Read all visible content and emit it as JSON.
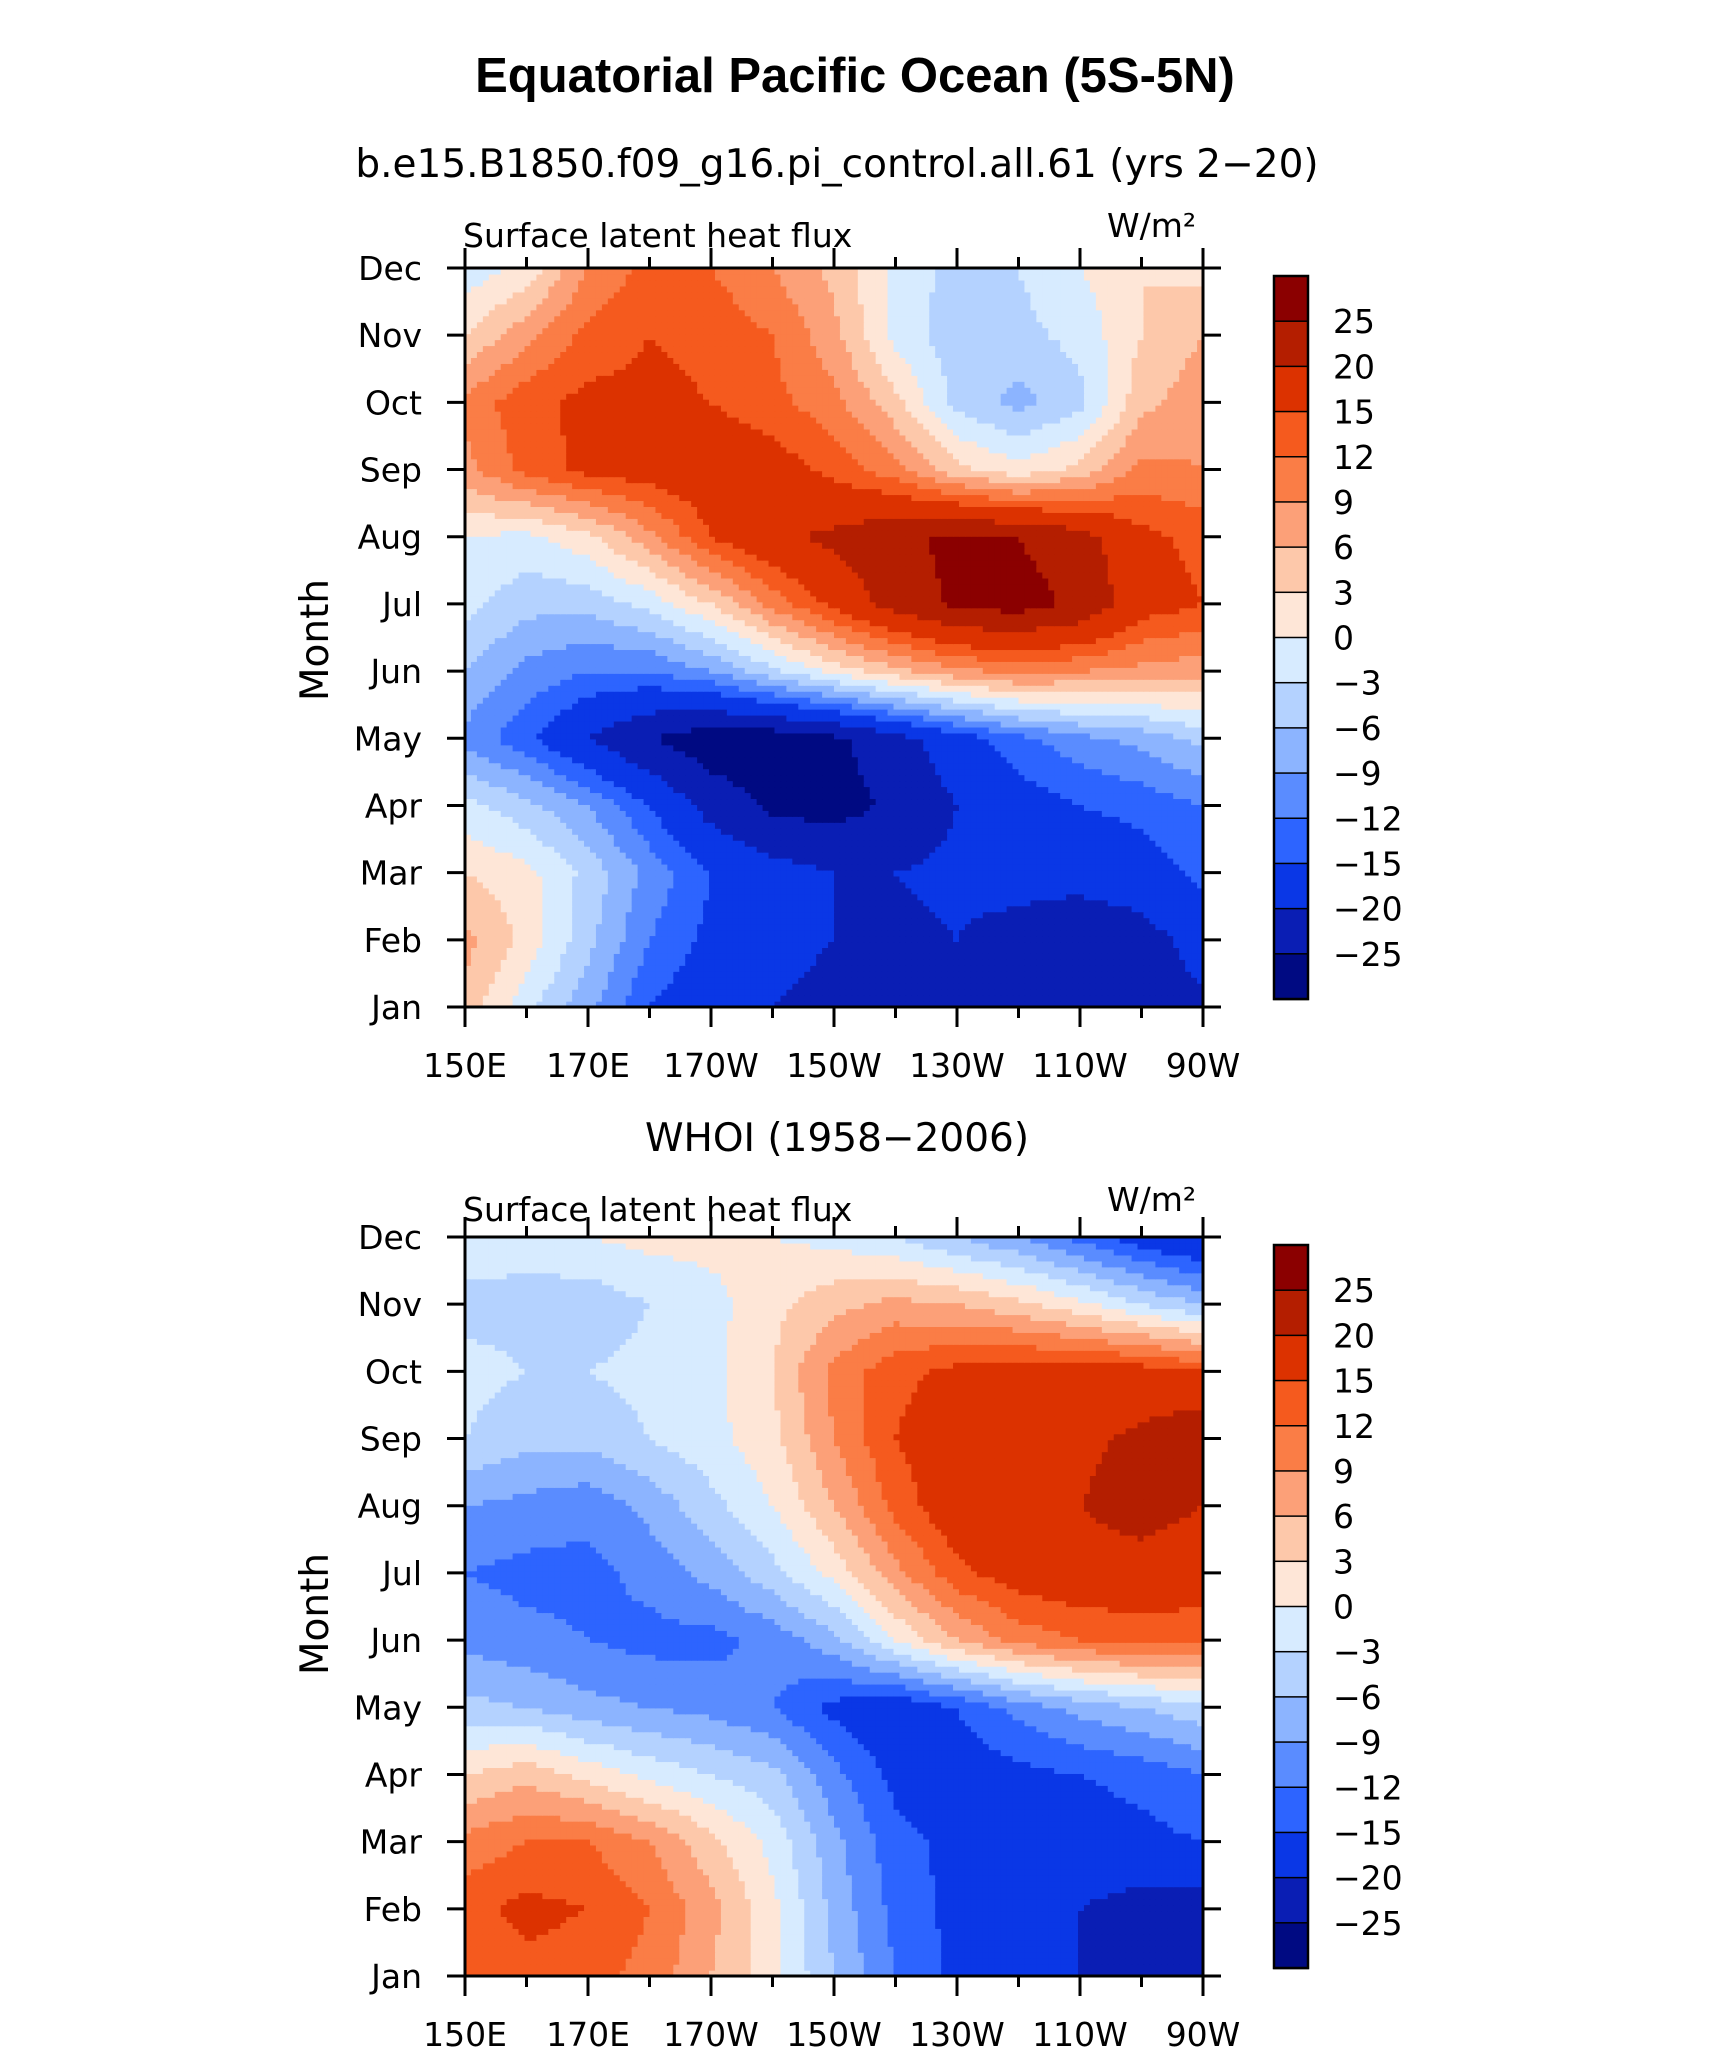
{
  "title": "Equatorial Pacific Ocean (5S-5N)",
  "colorbar": {
    "levels": [
      "25",
      "20",
      "15",
      "12",
      "9",
      "6",
      "3",
      "0",
      "−3",
      "−6",
      "−9",
      "−12",
      "−15",
      "−20",
      "−25"
    ],
    "colors": [
      "#8b0000",
      "#b41e00",
      "#dc3200",
      "#f55a1e",
      "#fa7d46",
      "#fca078",
      "#fdc8aa",
      "#fee6d7",
      "#d7ebff",
      "#b4d2ff",
      "#8cb4ff",
      "#5a8cff",
      "#2d64ff",
      "#0a37e6",
      "#0a1eb4",
      "#000a82"
    ]
  },
  "chart_data": [
    {
      "type": "heatmap",
      "panel_title": "b.e15.B1850.f09_g16.pi_control.all.61 (yrs 2−20)",
      "left_label": "Surface latent heat flux",
      "right_label": "W/m²",
      "ylabel": "Month",
      "xlabel": "",
      "x": [
        "150E",
        "170E",
        "170W",
        "150W",
        "130W",
        "110W",
        "90W"
      ],
      "y": [
        "Jan",
        "Feb",
        "Mar",
        "Apr",
        "May",
        "Jun",
        "Jul",
        "Aug",
        "Sep",
        "Oct",
        "Nov",
        "Dec"
      ],
      "z": [
        [
          5,
          -2,
          -8,
          -15,
          -18,
          -20,
          -21,
          -21,
          -21,
          -22,
          -23,
          -22,
          -21
        ],
        [
          7,
          2,
          -5,
          -12,
          -16,
          -19,
          -20,
          -21,
          -20,
          -22,
          -24,
          -22,
          -18
        ],
        [
          3,
          1,
          -4,
          -10,
          -15,
          -18,
          -20,
          -20,
          -19,
          -18,
          -18,
          -17,
          -14
        ],
        [
          -2,
          -5,
          -9,
          -15,
          -22,
          -26,
          -27,
          -24,
          -20,
          -17,
          -15,
          -14,
          -12
        ],
        [
          -10,
          -14,
          -20,
          -25,
          -28,
          -28,
          -26,
          -22,
          -17,
          -13,
          -10,
          -8,
          -5
        ],
        [
          -6,
          -10,
          -12,
          -12,
          -9,
          -4,
          1,
          5,
          8,
          10,
          9,
          8,
          7
        ],
        [
          -2,
          -5,
          -5,
          -2,
          3,
          10,
          16,
          22,
          26,
          27,
          24,
          17,
          15
        ],
        [
          0,
          -1,
          2,
          8,
          15,
          19,
          21,
          24,
          26,
          25,
          22,
          16,
          14
        ],
        [
          8,
          13,
          16,
          17,
          18,
          17,
          14,
          10,
          4,
          1,
          4,
          10,
          9
        ],
        [
          10,
          14,
          16,
          16,
          15,
          13,
          10,
          4,
          -4,
          -7,
          -4,
          5,
          8
        ],
        [
          3,
          8,
          13,
          15,
          14,
          12,
          7,
          -1,
          -5,
          -4,
          -2,
          3,
          6
        ],
        [
          -2,
          1,
          9,
          13,
          12,
          9,
          5,
          -1,
          -4,
          -3,
          0,
          3,
          2
        ]
      ],
      "zlim": [
        -30,
        30
      ]
    },
    {
      "type": "heatmap",
      "panel_title": "WHOI (1958−2006)",
      "left_label": "Surface latent heat flux",
      "right_label": "W/m²",
      "ylabel": "Month",
      "xlabel": "",
      "x": [
        "150E",
        "170E",
        "170W",
        "150W",
        "130W",
        "110W",
        "90W"
      ],
      "y": [
        "Jan",
        "Feb",
        "Mar",
        "Apr",
        "May",
        "Jun",
        "Jul",
        "Aug",
        "Sep",
        "Oct",
        "Nov",
        "Dec"
      ],
      "z": [
        [
          12,
          14,
          13,
          11,
          6,
          1,
          -6,
          -12,
          -16,
          -18,
          -20,
          -22,
          -25
        ],
        [
          14,
          16,
          15,
          12,
          7,
          1,
          -7,
          -13,
          -16,
          -18,
          -20,
          -22,
          -23
        ],
        [
          10,
          12,
          12,
          9,
          4,
          -1,
          -8,
          -14,
          -16,
          -17,
          -17,
          -16,
          -15
        ],
        [
          3,
          5,
          2,
          -1,
          -3,
          -5,
          -11,
          -16,
          -17,
          -16,
          -15,
          -14,
          -12
        ],
        [
          -5,
          -6,
          -8,
          -9,
          -10,
          -12,
          -16,
          -18,
          -15,
          -11,
          -8,
          -6,
          -4
        ],
        [
          -10,
          -11,
          -12,
          -13,
          -13,
          -11,
          -7,
          0,
          6,
          10,
          12,
          13,
          13
        ],
        [
          -12,
          -13,
          -13,
          -11,
          -8,
          -4,
          1,
          8,
          14,
          17,
          18,
          18,
          17
        ],
        [
          -9,
          -10,
          -11,
          -8,
          -4,
          0,
          6,
          13,
          18,
          20,
          20,
          22,
          20
        ],
        [
          -3,
          -5,
          -5,
          -3,
          -1,
          2,
          9,
          15,
          18,
          19,
          19,
          21,
          24
        ],
        [
          -2,
          -3,
          -3,
          -2,
          -1,
          3,
          10,
          14,
          16,
          17,
          17,
          17,
          15
        ],
        [
          -4,
          -4,
          -5,
          -3,
          -1,
          2,
          5,
          7,
          6,
          4,
          1,
          -3,
          -6
        ],
        [
          -1,
          -2,
          0,
          1,
          1,
          0,
          -1,
          -3,
          -6,
          -9,
          -13,
          -17,
          -20
        ]
      ],
      "zlim": [
        -30,
        30
      ]
    }
  ]
}
